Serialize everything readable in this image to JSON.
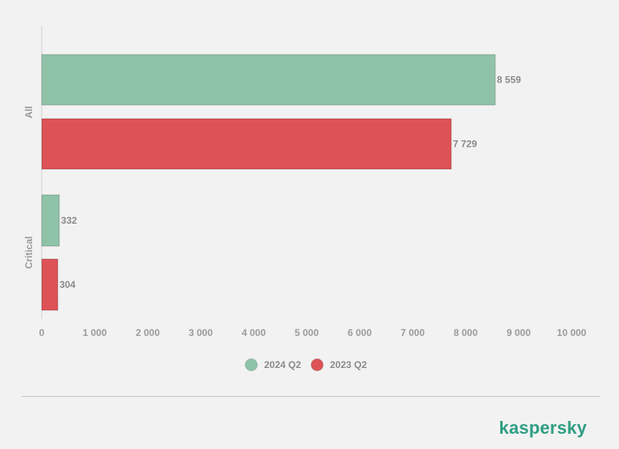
{
  "chart_data": {
    "type": "bar",
    "orientation": "horizontal",
    "categories": [
      "All",
      "Critical"
    ],
    "series": [
      {
        "name": "2024 Q2",
        "values": [
          8559,
          332
        ],
        "labels": [
          "8 559",
          "332"
        ],
        "color": "#8fc3a8"
      },
      {
        "name": "2023 Q2",
        "values": [
          7729,
          304
        ],
        "labels": [
          "7 729",
          "304"
        ],
        "color": "#dd5257"
      }
    ],
    "xticks": [
      0,
      1000,
      2000,
      3000,
      4000,
      5000,
      6000,
      7000,
      8000,
      9000,
      10000
    ],
    "xtick_labels": [
      "0",
      "1 000",
      "2 000",
      "3 000",
      "4 000",
      "5 000",
      "6 000",
      "7 000",
      "8 000",
      "9 000",
      "10 000"
    ],
    "xlim": [
      0,
      10000
    ],
    "grid": false,
    "legend_position": "bottom"
  },
  "brand": "kaspersky"
}
